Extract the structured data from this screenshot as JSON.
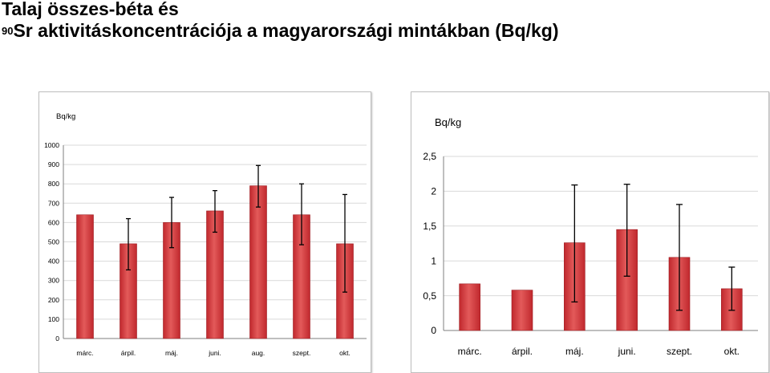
{
  "title": {
    "line1": "Talaj összes-béta és",
    "superscript": "90",
    "line2": "Sr aktivitáskoncentrációja a magyarországi mintákban (Bq/kg)"
  },
  "colors": {
    "bar": "#c0282d",
    "bar_highlight": "#e35a5a",
    "grid": "#d9d9d9",
    "axis": "#000000"
  },
  "chart_data": [
    {
      "type": "bar",
      "ylabel": "Bq/kg",
      "xlabel": "",
      "ylim": [
        0,
        1000
      ],
      "yticks": [
        0,
        100,
        200,
        300,
        400,
        500,
        600,
        700,
        800,
        900,
        1000
      ],
      "ytick_labels": [
        "0",
        "100",
        "200",
        "300",
        "400",
        "500",
        "600",
        "700",
        "800",
        "900",
        "1000"
      ],
      "categories": [
        "márc.",
        "árpil.",
        "máj.",
        "juni.",
        "aug.",
        "szept.",
        "okt."
      ],
      "values": [
        640,
        490,
        600,
        660,
        790,
        640,
        490
      ],
      "error_low": [
        null,
        355,
        470,
        550,
        680,
        485,
        240
      ],
      "error_high": [
        null,
        620,
        730,
        765,
        895,
        800,
        745
      ],
      "grid": true,
      "legend": "none"
    },
    {
      "type": "bar",
      "ylabel": "Bq/kg",
      "xlabel": "",
      "ylim": [
        0,
        2.5
      ],
      "yticks": [
        0,
        0.5,
        1,
        1.5,
        2,
        2.5
      ],
      "ytick_labels": [
        "0",
        "0,5",
        "1",
        "1,5",
        "2",
        "2,5"
      ],
      "categories": [
        "márc.",
        "árpil.",
        "máj.",
        "juni.",
        "szept.",
        "okt."
      ],
      "values": [
        0.67,
        0.58,
        1.26,
        1.45,
        1.05,
        0.6
      ],
      "error_low": [
        null,
        null,
        0.41,
        0.78,
        0.29,
        0.29
      ],
      "error_high": [
        null,
        null,
        2.09,
        2.1,
        1.81,
        0.91
      ],
      "grid": true,
      "legend": "none"
    }
  ]
}
